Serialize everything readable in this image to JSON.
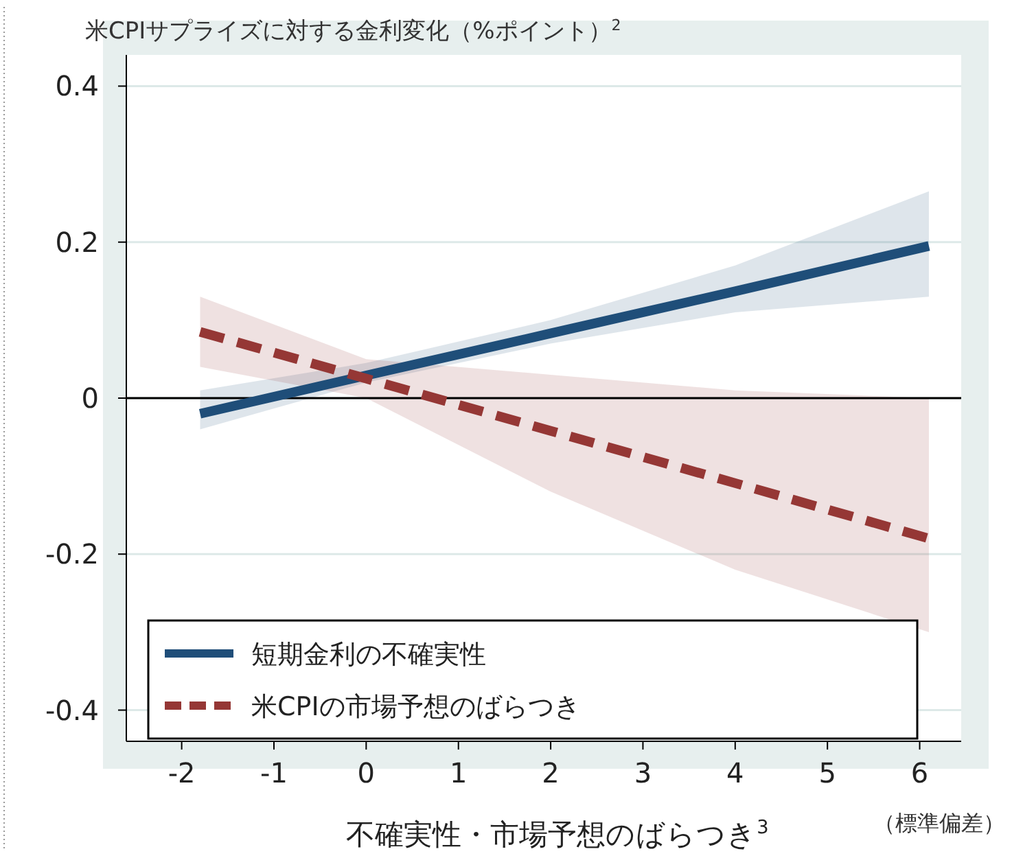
{
  "chart_data": {
    "type": "line",
    "title": "米CPIサプライズに対する金利変化（%ポイント）$^{2}$",
    "xlabel": "不確実性・市場予想のばらつき$^{3}$",
    "annotations": [
      "（標準偏差）"
    ],
    "xlim": [
      -2.6,
      6.45
    ],
    "xticks": [
      -2,
      -1,
      0,
      1,
      2,
      3,
      4,
      5,
      6
    ],
    "ylim": [
      -0.44,
      0.44
    ],
    "yticks": [
      {
        "value": 0.4,
        "label": "0.4"
      },
      {
        "value": 0.2,
        "label": "0.2"
      },
      {
        "value": 0,
        "label": "0"
      },
      {
        "value": -0.2,
        "label": "-0.2"
      },
      {
        "value": -0.4,
        "label": "-0.4"
      }
    ],
    "grid": "y",
    "legend": "bottom",
    "marker": "none",
    "ref_lines": [
      {
        "axis": "y",
        "value": 0,
        "color": "#000000"
      }
    ],
    "series": [
      {
        "name": "短期金利の不確実性",
        "color": "#1f4e79",
        "line_style": "solid",
        "x": [
          -1.8,
          0,
          2,
          4,
          6.1
        ],
        "values": [
          -0.02,
          0.029,
          0.083,
          0.137,
          0.195
        ],
        "lower": [
          -0.04,
          0.02,
          0.07,
          0.11,
          0.13
        ],
        "upper": [
          0.01,
          0.045,
          0.1,
          0.17,
          0.265
        ]
      },
      {
        "name": "米CPIの市場予想のばらつき",
        "color": "#953735",
        "line_style": "dashed",
        "x": [
          -1.8,
          0,
          2,
          4,
          6.1
        ],
        "values": [
          0.085,
          0.025,
          -0.042,
          -0.109,
          -0.18
        ],
        "lower": [
          0.04,
          0,
          -0.12,
          -0.22,
          -0.3
        ],
        "upper": [
          0.13,
          0.05,
          0.03,
          0.01,
          0
        ]
      }
    ]
  }
}
